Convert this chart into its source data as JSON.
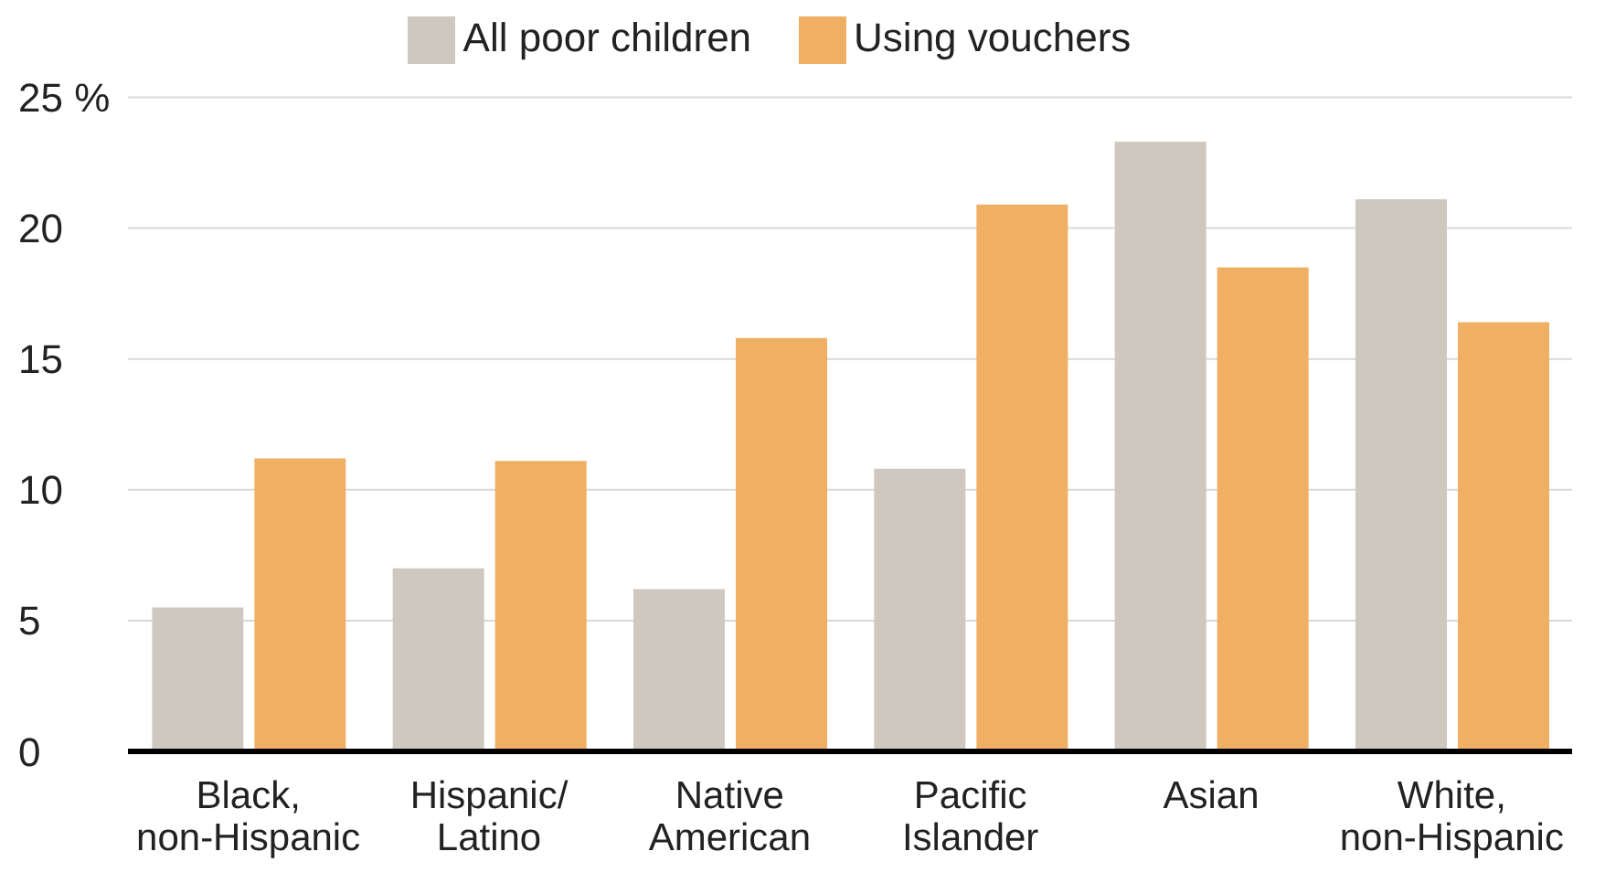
{
  "chart_data": {
    "type": "bar",
    "categories": [
      "Black,\nnon-Hispanic",
      "Hispanic/\nLatino",
      "Native\nAmerican",
      "Pacific\nIslander",
      "Asian",
      "White,\nnon-Hispanic"
    ],
    "series": [
      {
        "name": "All poor children",
        "color": "#cfc8bf",
        "values": [
          5.5,
          7.0,
          6.2,
          10.8,
          23.3,
          21.1
        ]
      },
      {
        "name": "Using vouchers",
        "color": "#f0b064",
        "values": [
          11.2,
          11.1,
          15.8,
          20.9,
          18.5,
          16.4
        ]
      }
    ],
    "ylim": [
      0,
      25
    ],
    "yticks": [
      0,
      5,
      10,
      15,
      20,
      {
        "value": 25,
        "label": "25 %"
      }
    ],
    "grid": "y",
    "legend": "top"
  }
}
